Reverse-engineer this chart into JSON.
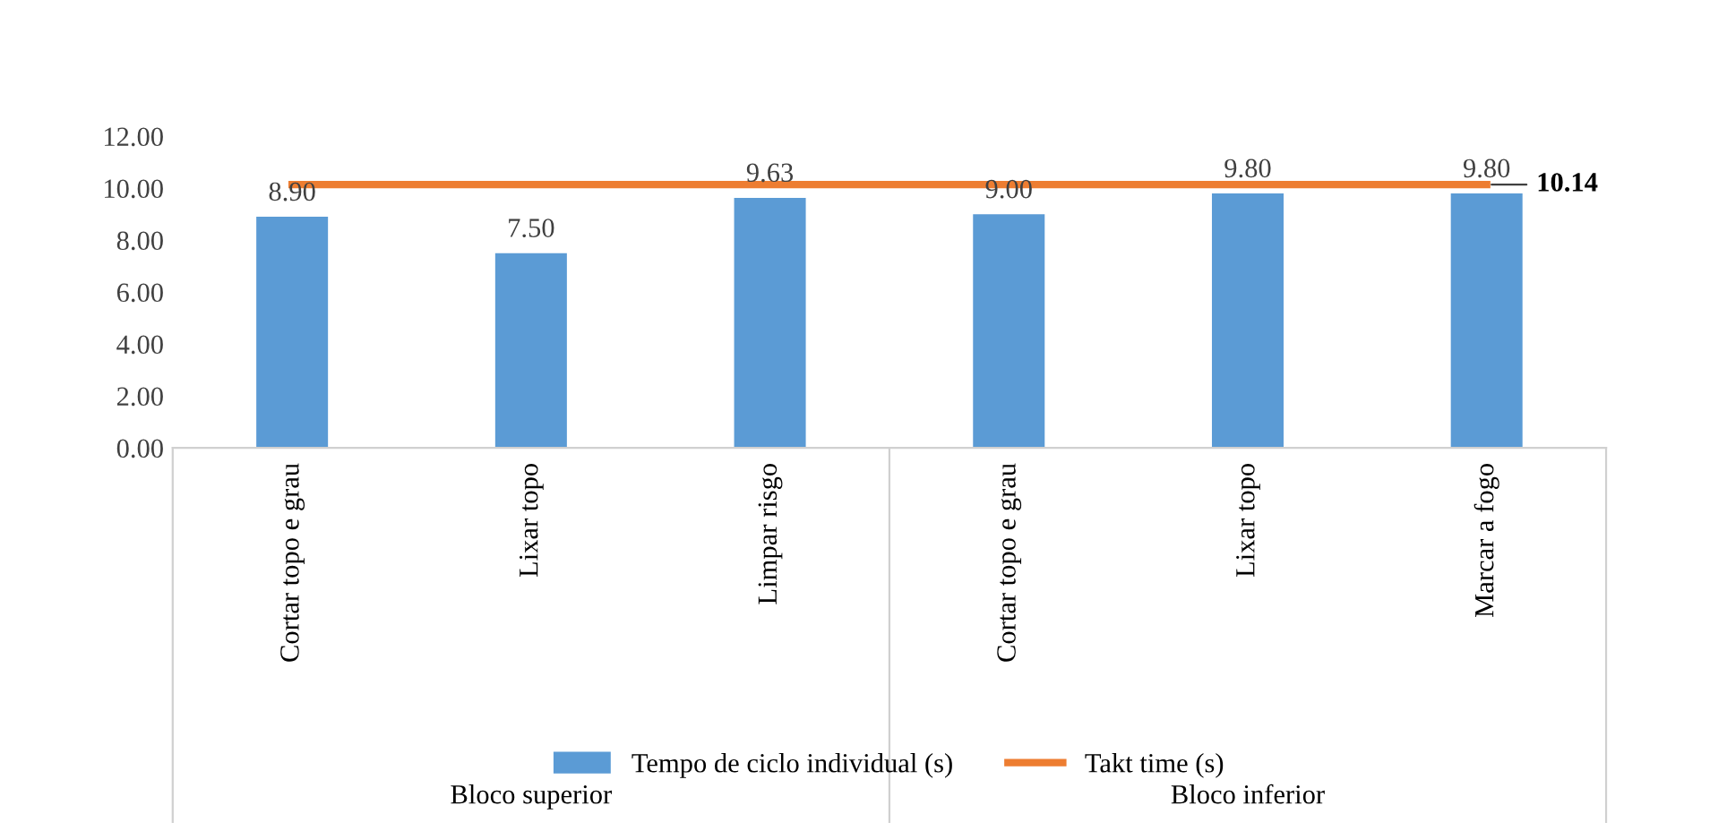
{
  "chart_data": {
    "type": "bar",
    "categories": [
      "Cortar topo e grau",
      "Lixar topo",
      "Limpar risgo",
      "Cortar topo e grau",
      "Lixar topo",
      "Marcar a fogo"
    ],
    "series": [
      {
        "name": "Tempo de ciclo individual (s)",
        "color": "#5b9bd5",
        "values": [
          8.9,
          7.5,
          9.63,
          9.0,
          9.8,
          9.8
        ],
        "value_labels": [
          "8.90",
          "7.50",
          "9.63",
          "9.00",
          "9.80",
          "9.80"
        ]
      },
      {
        "name": "Takt time (s)",
        "type": "line",
        "color": "#ed7d31",
        "values": [
          10.14,
          10.14,
          10.14,
          10.14,
          10.14,
          10.14
        ],
        "value_labels": [
          null,
          null,
          null,
          null,
          null,
          "10.14"
        ]
      }
    ],
    "ylim": [
      0,
      12
    ],
    "yticks": [
      {
        "value": 0,
        "label": "0.00"
      },
      {
        "value": 2,
        "label": "2.00"
      },
      {
        "value": 4,
        "label": "4.00"
      },
      {
        "value": 6,
        "label": "6.00"
      },
      {
        "value": 8,
        "label": "8.00"
      },
      {
        "value": 10,
        "label": "10.00"
      },
      {
        "value": 12,
        "label": "12.00"
      }
    ],
    "annotations": [
      "Bloco superior",
      "Bloco inferior"
    ],
    "legend": "bottom",
    "grid": false,
    "marker": "none"
  }
}
